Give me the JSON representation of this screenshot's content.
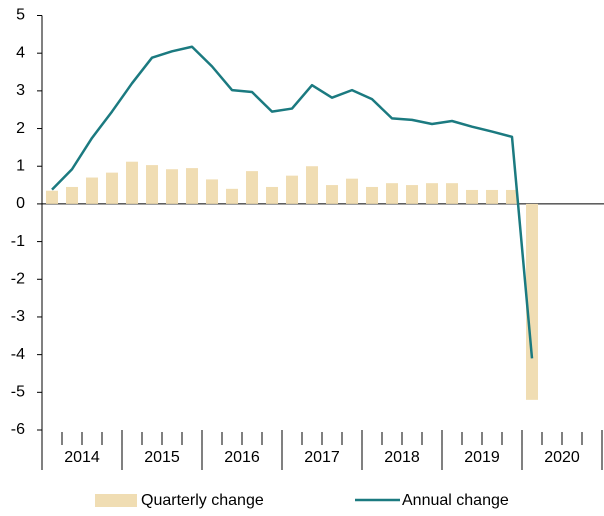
{
  "chart_data": {
    "type": "bar_line",
    "categories": [
      null,
      null,
      null,
      null,
      null,
      null,
      null,
      null,
      null,
      null,
      null,
      null,
      null,
      null,
      null,
      null,
      null,
      null,
      null,
      null,
      null,
      null,
      null,
      null,
      null,
      null,
      null,
      null
    ],
    "category_groups": [
      "2014",
      "2015",
      "2016",
      "2017",
      "2018",
      "2019",
      "2020"
    ],
    "series": [
      {
        "name": "Quarterly change",
        "type": "bar",
        "color": "#f0ddb3",
        "values": [
          0.35,
          0.45,
          0.7,
          0.83,
          1.12,
          1.03,
          0.92,
          0.95,
          0.65,
          0.4,
          0.87,
          0.45,
          0.75,
          1.0,
          0.5,
          0.67,
          0.45,
          0.55,
          0.5,
          0.55,
          0.55,
          0.37,
          0.37,
          0.37,
          -5.2,
          null,
          null,
          null
        ]
      },
      {
        "name": "Annual change",
        "type": "line",
        "color": "#1b7a80",
        "values": [
          0.38,
          0.92,
          1.75,
          2.45,
          3.2,
          3.88,
          4.05,
          4.17,
          3.65,
          3.02,
          2.97,
          2.45,
          2.53,
          3.15,
          2.82,
          3.02,
          2.78,
          2.27,
          2.23,
          2.12,
          2.2,
          2.05,
          1.92,
          1.78,
          -4.1,
          null,
          null,
          null
        ]
      }
    ],
    "ylim": [
      -6,
      5
    ],
    "yticks": [
      5,
      4,
      3,
      2,
      1,
      0,
      -1,
      -2,
      -3,
      -4,
      -5,
      -6
    ],
    "legend": "bottom"
  }
}
